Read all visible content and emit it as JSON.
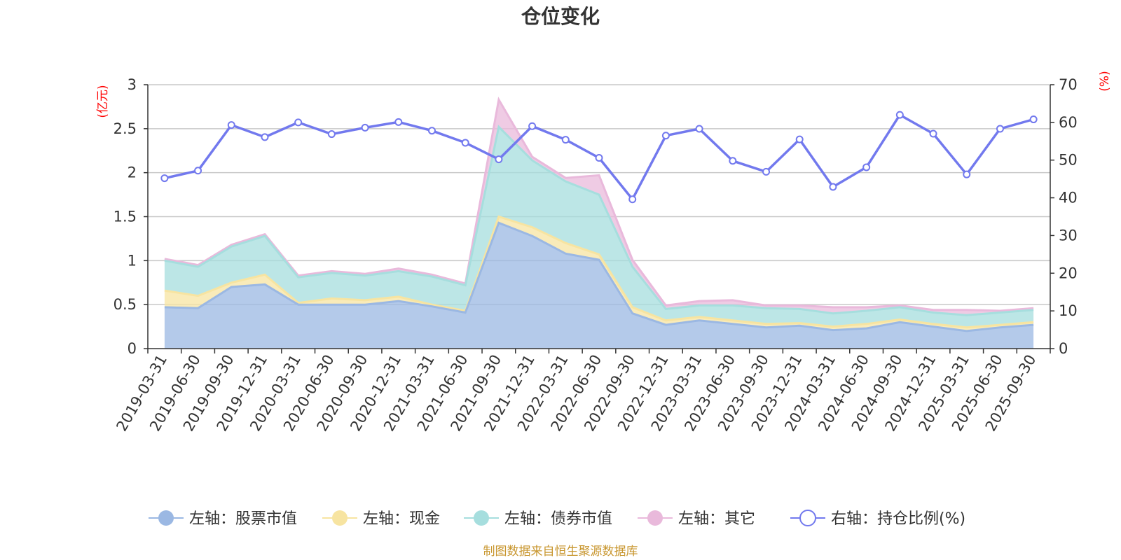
{
  "chart_data": {
    "type": "area",
    "title": "仓位变化",
    "categories": [
      "2019-03-31",
      "2019-06-30",
      "2019-09-30",
      "2019-12-31",
      "2020-03-31",
      "2020-06-30",
      "2020-09-30",
      "2020-12-31",
      "2021-03-31",
      "2021-06-30",
      "2021-09-30",
      "2021-12-31",
      "2022-03-31",
      "2022-06-30",
      "2022-09-30",
      "2022-12-31",
      "2023-03-31",
      "2023-06-30",
      "2023-09-30",
      "2023-12-31",
      "2024-03-31",
      "2024-06-30",
      "2024-09-30",
      "2024-12-31",
      "2025-03-31",
      "2025-06-30",
      "2025-09-30"
    ],
    "left_axis": {
      "unit": "(亿元)",
      "ylim": [
        0,
        3
      ],
      "ticks": [
        "0",
        "0.5",
        "1",
        "1.5",
        "2",
        "2.5",
        "3"
      ]
    },
    "right_axis": {
      "unit": "(%)",
      "ylim": [
        0,
        70
      ],
      "ticks": [
        "0",
        "10",
        "20",
        "30",
        "40",
        "50",
        "60",
        "70"
      ]
    },
    "stacked_series": [
      {
        "name": "左轴：股票市值",
        "color": "#9bb8e3",
        "values": [
          0.47,
          0.46,
          0.7,
          0.73,
          0.5,
          0.5,
          0.5,
          0.54,
          0.48,
          0.41,
          1.43,
          1.28,
          1.08,
          1.01,
          0.4,
          0.27,
          0.32,
          0.28,
          0.24,
          0.26,
          0.21,
          0.23,
          0.3,
          0.25,
          0.2,
          0.24,
          0.27
        ]
      },
      {
        "name": "左轴：现金",
        "color": "#f7e4a1",
        "values": [
          0.19,
          0.14,
          0.05,
          0.11,
          0.02,
          0.07,
          0.05,
          0.05,
          0.02,
          0.02,
          0.07,
          0.1,
          0.12,
          0.06,
          0.07,
          0.05,
          0.04,
          0.04,
          0.04,
          0.03,
          0.04,
          0.05,
          0.03,
          0.03,
          0.04,
          0.03,
          0.03
        ]
      },
      {
        "name": "左轴：债券市值",
        "color": "#a6dede",
        "values": [
          0.34,
          0.33,
          0.41,
          0.44,
          0.29,
          0.29,
          0.28,
          0.29,
          0.32,
          0.29,
          1.02,
          0.76,
          0.7,
          0.68,
          0.46,
          0.13,
          0.13,
          0.17,
          0.18,
          0.16,
          0.15,
          0.15,
          0.14,
          0.13,
          0.14,
          0.14,
          0.14
        ]
      },
      {
        "name": "左轴：其它",
        "color": "#e9b9db",
        "values": [
          0.02,
          0.02,
          0.02,
          0.02,
          0.02,
          0.02,
          0.02,
          0.03,
          0.02,
          0.02,
          0.31,
          0.04,
          0.04,
          0.22,
          0.08,
          0.04,
          0.05,
          0.06,
          0.03,
          0.04,
          0.07,
          0.04,
          0.02,
          0.03,
          0.06,
          0.02,
          0.02
        ]
      }
    ],
    "line_series": {
      "name": "右轴：持仓比例(%)",
      "color": "#7279ee",
      "axis": "right",
      "values": [
        45.2,
        47.2,
        59.3,
        56.1,
        60.0,
        56.9,
        58.6,
        60.1,
        57.8,
        54.6,
        50.2,
        59.0,
        55.4,
        50.6,
        39.6,
        56.5,
        58.3,
        49.8,
        46.9,
        55.5,
        42.9,
        48.1,
        62.0,
        57.0,
        46.2,
        58.3,
        60.8
      ]
    },
    "legend": [
      "左轴：股票市值",
      "左轴：现金",
      "左轴：债券市值",
      "左轴：其它",
      "右轴：持仓比例(%)"
    ],
    "legend_position": "bottom",
    "grid": true
  },
  "source_note": "制图数据来自恒生聚源数据库"
}
